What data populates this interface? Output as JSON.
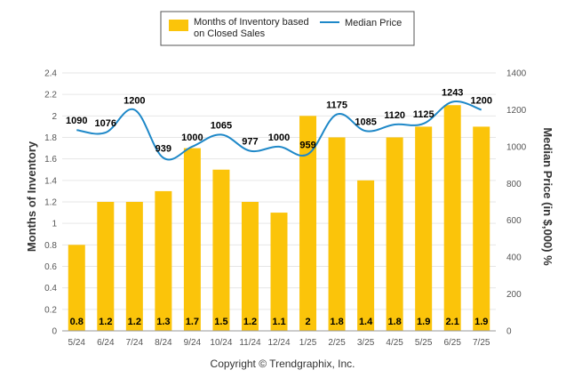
{
  "colors": {
    "bar": "#FBC40A",
    "line": "#1E88C8",
    "grid": "#E6E6E6",
    "axis": "#999999"
  },
  "chart_data": {
    "type": "bar",
    "categories": [
      "5/24",
      "6/24",
      "7/24",
      "8/24",
      "9/24",
      "10/24",
      "11/24",
      "12/24",
      "1/25",
      "2/25",
      "3/25",
      "4/25",
      "5/25",
      "6/25",
      "7/25"
    ],
    "series": [
      {
        "name": "Months of Inventory based on Closed Sales",
        "type": "bar",
        "axis": "left",
        "values": [
          0.8,
          1.2,
          1.2,
          1.3,
          1.7,
          1.5,
          1.2,
          1.1,
          2,
          1.8,
          1.4,
          1.8,
          1.9,
          2.1,
          1.9
        ],
        "labels": [
          "0.8",
          "1.2",
          "1.2",
          "1.3",
          "1.7",
          "1.5",
          "1.2",
          "1.1",
          "2",
          "1.8",
          "1.4",
          "1.8",
          "1.9",
          "2.1",
          "1.9"
        ]
      },
      {
        "name": "Median Price",
        "type": "line",
        "axis": "right",
        "values": [
          1090,
          1076,
          1200,
          939,
          1000,
          1065,
          977,
          1000,
          959,
          1175,
          1085,
          1120,
          1125,
          1243,
          1200
        ],
        "labels": [
          "1090",
          "1076",
          "1200",
          "939",
          "1000",
          "1065",
          "977",
          "1000",
          "959",
          "1175",
          "1085",
          "1120",
          "1125",
          "1243",
          "1200"
        ]
      }
    ],
    "legend": {
      "placement": "top-center",
      "bar_line1": "Months of Inventory based",
      "bar_line2": "on Closed Sales",
      "line": "Median Price"
    },
    "y_left": {
      "label": "Months of Inventory",
      "range": [
        0,
        2.4
      ],
      "ticks": [
        "0",
        "0.2",
        "0.4",
        "0.6",
        "0.8",
        "1",
        "1.2",
        "1.4",
        "1.6",
        "1.8",
        "2",
        "2.2",
        "2.4"
      ]
    },
    "y_right": {
      "label": "Median Price (in $,000) %",
      "range": [
        0,
        1400
      ],
      "ticks": [
        "0",
        "200",
        "400",
        "600",
        "800",
        "1000",
        "1200",
        "1400"
      ]
    },
    "grid": true,
    "credit": "Copyright © Trendgraphix, Inc."
  }
}
